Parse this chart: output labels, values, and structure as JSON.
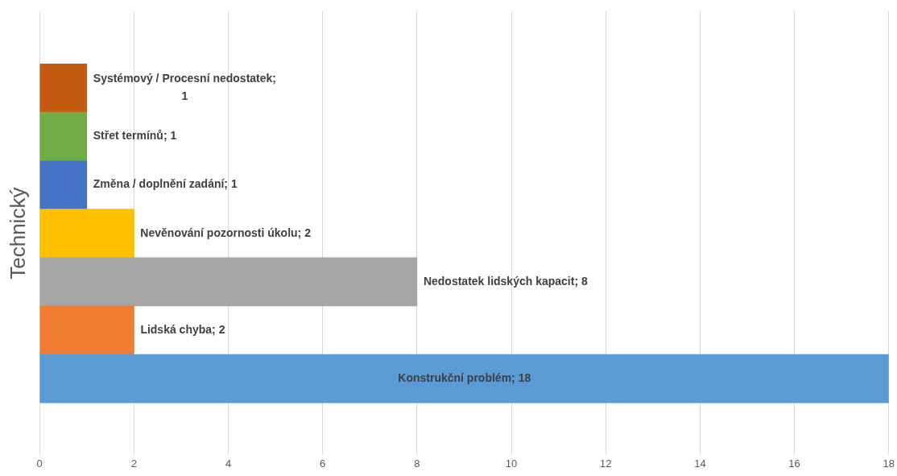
{
  "chart_data": {
    "type": "bar",
    "orientation": "horizontal",
    "ylabel": "Technický",
    "categories": [
      null,
      null,
      null,
      null,
      null,
      null,
      null
    ],
    "values": [
      1,
      1,
      1,
      2,
      8,
      2,
      18
    ],
    "colors": [
      "#c55a11",
      "#70ad47",
      "#4472c4",
      "#ffc000",
      "#a5a5a5",
      "#ed7d31",
      "#5b9bd5"
    ],
    "value_labels": [
      "Systémový / Procesní nedostatek; 1",
      "Střet termínů; 1",
      "Změna / doplnění zadání; 1",
      "Nevěnování pozornosti úkolu; 2",
      "Nedostatek lidských kapacit; 8",
      "Lidská chyba; 2",
      "Konstrukční problém; 18"
    ],
    "xlim": [
      0,
      18
    ],
    "xticks": [
      0,
      2,
      4,
      6,
      8,
      10,
      12,
      14,
      16,
      18
    ],
    "grid": "x",
    "legend": false
  }
}
